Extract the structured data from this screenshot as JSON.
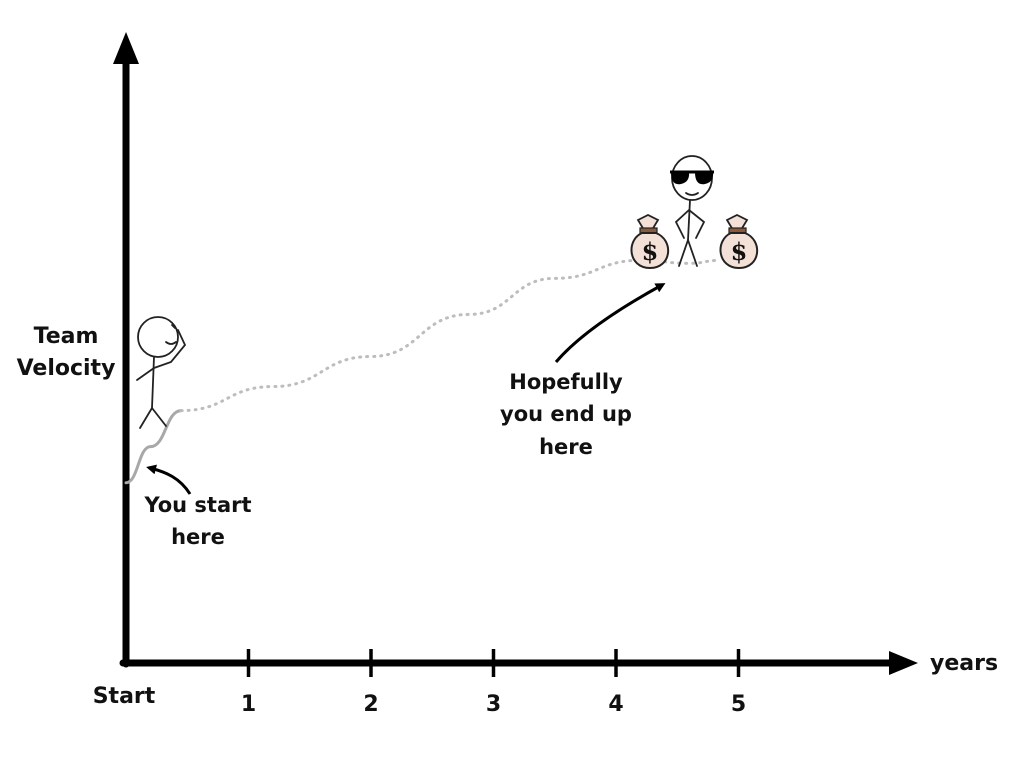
{
  "chart_data": {
    "type": "line",
    "ylabel": [
      "Team",
      "Velocity"
    ],
    "xlabel": "years",
    "x_start_label": "Start",
    "x_ticks": [
      "1",
      "2",
      "3",
      "4",
      "5"
    ],
    "xlim": [
      0,
      7
    ],
    "grid": false,
    "series": [
      {
        "style": "solid",
        "color": "#a8a8a8",
        "points": [
          [
            0,
            0.3
          ],
          [
            0.2,
            0.36
          ],
          [
            0.45,
            0.42
          ]
        ]
      },
      {
        "style": "dotted",
        "color": "#bdbdbd",
        "points": [
          [
            0.45,
            0.42
          ],
          [
            1.2,
            0.46
          ],
          [
            2.0,
            0.51
          ],
          [
            2.8,
            0.58
          ],
          [
            3.5,
            0.64
          ],
          [
            4.2,
            0.67
          ],
          [
            4.6,
            0.665
          ],
          [
            4.85,
            0.67
          ]
        ]
      }
    ],
    "annotations": {
      "start": [
        "You start",
        "here"
      ],
      "end": [
        "Hopefully",
        "you end up",
        "here"
      ]
    },
    "colors": {
      "axis": "#000000",
      "bag_fill": "#f3e1d7",
      "bag_tie": "#8a5a3a",
      "ink": "#111111"
    }
  }
}
